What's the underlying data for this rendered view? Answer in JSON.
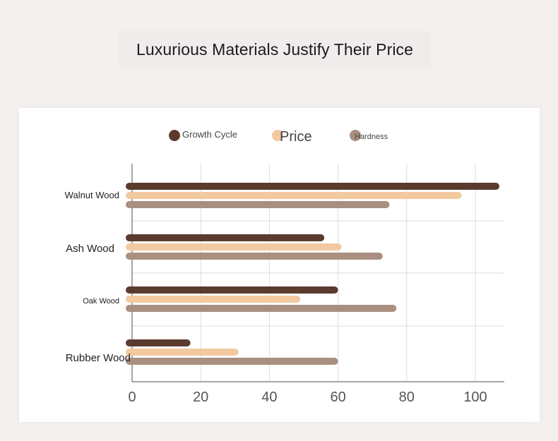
{
  "title": "Luxurious Materials Justify Their Price",
  "colors": {
    "growth": "#5b3b2e",
    "price": "#f2c9a0",
    "hardness": "#a98f7f",
    "grid": "#dcdcdc",
    "axis": "#888888"
  },
  "chart_data": {
    "type": "bar",
    "orientation": "horizontal",
    "categories": [
      "Walnut Wood",
      "Ash Wood",
      "Oak Wood",
      "Rubber Wood"
    ],
    "series": [
      {
        "name": "Growth Cycle",
        "values": [
          107,
          56,
          60,
          17
        ]
      },
      {
        "name": "Price",
        "values": [
          96,
          61,
          49,
          31
        ]
      },
      {
        "name": "Hardness",
        "values": [
          75,
          73,
          77,
          60
        ]
      }
    ],
    "xticks": [
      "0",
      "20",
      "40",
      "60",
      "80",
      "100"
    ],
    "xlim": [
      0,
      110
    ],
    "grid": true,
    "legend_position": "top"
  }
}
